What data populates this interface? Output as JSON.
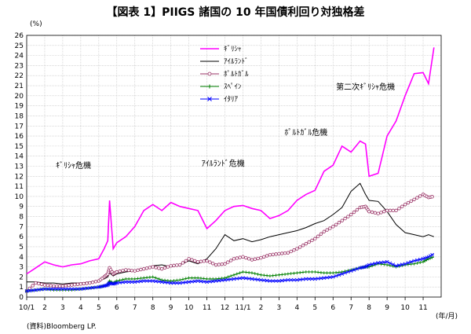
{
  "chart_data": {
    "type": "line",
    "title": "【図表 1】PIIGS 諸国の 10 年国債利回り対独格差",
    "ylabel": "(%)",
    "xlabel": "(年/月)",
    "source": "(資料)Bloomberg LP.",
    "ylim": [
      0,
      26
    ],
    "yticks": [
      0,
      1,
      2,
      3,
      4,
      5,
      6,
      7,
      8,
      9,
      10,
      11,
      12,
      13,
      14,
      15,
      16,
      17,
      18,
      19,
      20,
      21,
      22,
      23,
      24,
      25,
      26
    ],
    "xlim": [
      0,
      23
    ],
    "xtick_labels": [
      "10/1",
      "2",
      "3",
      "4",
      "5",
      "6",
      "7",
      "8",
      "9",
      "10",
      "11",
      "12",
      "11/1",
      "2",
      "3",
      "4",
      "5",
      "6",
      "7",
      "8",
      "9",
      "10",
      "11"
    ],
    "grid": true,
    "legend_position": "top-right",
    "x": [
      0,
      0.5,
      1,
      1.5,
      2,
      2.5,
      3,
      3.5,
      4,
      4.3,
      4.5,
      4.6,
      4.8,
      5,
      5.5,
      6,
      6.5,
      7,
      7.5,
      8,
      8.5,
      9,
      9.5,
      10,
      10.5,
      11,
      11.5,
      12,
      12.5,
      13,
      13.5,
      14,
      14.5,
      15,
      15.5,
      16,
      16.5,
      17,
      17.5,
      18,
      18.5,
      18.8,
      19,
      19.5,
      20,
      20.5,
      21,
      21.5,
      22,
      22.3,
      22.6
    ],
    "series": [
      {
        "name": "ｷﾞﾘｼｬ",
        "color": "#ff00ff",
        "marker": "none",
        "values": [
          2.3,
          2.9,
          3.5,
          3.2,
          3.0,
          3.2,
          3.3,
          3.6,
          3.8,
          4.8,
          5.6,
          9.6,
          4.8,
          5.4,
          6.0,
          7.0,
          8.6,
          9.2,
          8.6,
          9.4,
          9.0,
          8.8,
          8.6,
          6.8,
          7.6,
          8.6,
          9.0,
          9.1,
          8.8,
          8.6,
          7.8,
          8.1,
          8.6,
          9.6,
          10.2,
          10.6,
          12.5,
          13.1,
          15.0,
          14.4,
          15.5,
          15.2,
          12.0,
          12.3,
          16.0,
          17.5,
          20.0,
          22.2,
          22.3,
          21.2,
          24.8
        ]
      },
      {
        "name": "ｱｲﾙﾗﾝﾄﾞ",
        "color": "#000000",
        "marker": "none",
        "values": [
          1.5,
          1.5,
          1.4,
          1.4,
          1.3,
          1.4,
          1.4,
          1.5,
          1.6,
          1.8,
          2.0,
          2.4,
          2.1,
          2.3,
          2.5,
          2.6,
          2.8,
          3.1,
          3.2,
          3.0,
          3.2,
          3.6,
          3.3,
          3.8,
          4.8,
          6.2,
          5.6,
          5.8,
          5.5,
          5.7,
          6.0,
          6.2,
          6.4,
          6.6,
          6.9,
          7.3,
          7.6,
          8.2,
          8.9,
          10.5,
          11.3,
          10.2,
          9.6,
          9.5,
          8.5,
          7.2,
          6.4,
          6.2,
          6.0,
          6.2,
          6.0
        ]
      },
      {
        "name": "ﾎﾟﾙﾄｶﾞﾙ",
        "color": "#993366",
        "marker": "circle",
        "values": [
          0.6,
          1.4,
          1.2,
          1.1,
          1.1,
          1.2,
          1.3,
          1.4,
          1.6,
          2.0,
          2.3,
          2.9,
          2.3,
          2.5,
          2.7,
          2.6,
          2.8,
          3.0,
          2.8,
          3.1,
          3.2,
          3.8,
          3.5,
          3.6,
          3.2,
          3.3,
          3.8,
          4.0,
          3.7,
          3.9,
          4.2,
          4.3,
          4.4,
          4.8,
          5.3,
          5.8,
          6.5,
          7.0,
          7.6,
          8.2,
          8.9,
          9.0,
          8.5,
          8.3,
          8.6,
          8.6,
          9.2,
          9.7,
          10.2,
          9.9,
          10.0
        ]
      },
      {
        "name": "ｽﾍﾟｲﾝ",
        "color": "#008000",
        "marker": "plus",
        "values": [
          0.6,
          0.7,
          0.8,
          0.7,
          0.7,
          0.7,
          0.8,
          0.9,
          1.0,
          1.1,
          1.2,
          1.6,
          1.4,
          1.6,
          1.8,
          1.8,
          1.9,
          2.0,
          1.7,
          1.6,
          1.7,
          1.9,
          1.9,
          1.8,
          1.8,
          1.9,
          2.2,
          2.5,
          2.4,
          2.2,
          2.1,
          2.2,
          2.3,
          2.4,
          2.5,
          2.5,
          2.4,
          2.4,
          2.5,
          2.7,
          2.9,
          3.0,
          3.0,
          3.3,
          3.2,
          3.0,
          3.2,
          3.3,
          3.5,
          3.8,
          4.0
        ]
      },
      {
        "name": "ｲﾀﾘｱ",
        "color": "#0000ff",
        "marker": "x",
        "values": [
          0.6,
          0.7,
          0.8,
          0.8,
          0.8,
          0.8,
          0.8,
          0.9,
          1.0,
          1.1,
          1.2,
          1.4,
          1.3,
          1.4,
          1.5,
          1.5,
          1.6,
          1.6,
          1.5,
          1.4,
          1.4,
          1.5,
          1.6,
          1.5,
          1.6,
          1.7,
          1.8,
          1.9,
          1.8,
          1.7,
          1.6,
          1.6,
          1.7,
          1.7,
          1.8,
          1.8,
          1.9,
          2.0,
          2.3,
          2.6,
          2.9,
          3.0,
          3.2,
          3.4,
          3.5,
          3.1,
          3.3,
          3.6,
          3.8,
          4.0,
          4.3
        ]
      }
    ],
    "annotations": [
      {
        "text": "ｷﾞﾘｼｬ危機",
        "x": 2.6,
        "y": 12.8
      },
      {
        "text": "ｱｲﾙﾗﾝﾄﾞ危機",
        "x": 10.9,
        "y": 13.0
      },
      {
        "text": "ﾎﾟﾙﾄｶﾞﾙ危機",
        "x": 15.5,
        "y": 16.1
      },
      {
        "text": "第二次ｷﾞﾘｼｬ危機",
        "x": 18.8,
        "y": 20.6
      }
    ]
  }
}
